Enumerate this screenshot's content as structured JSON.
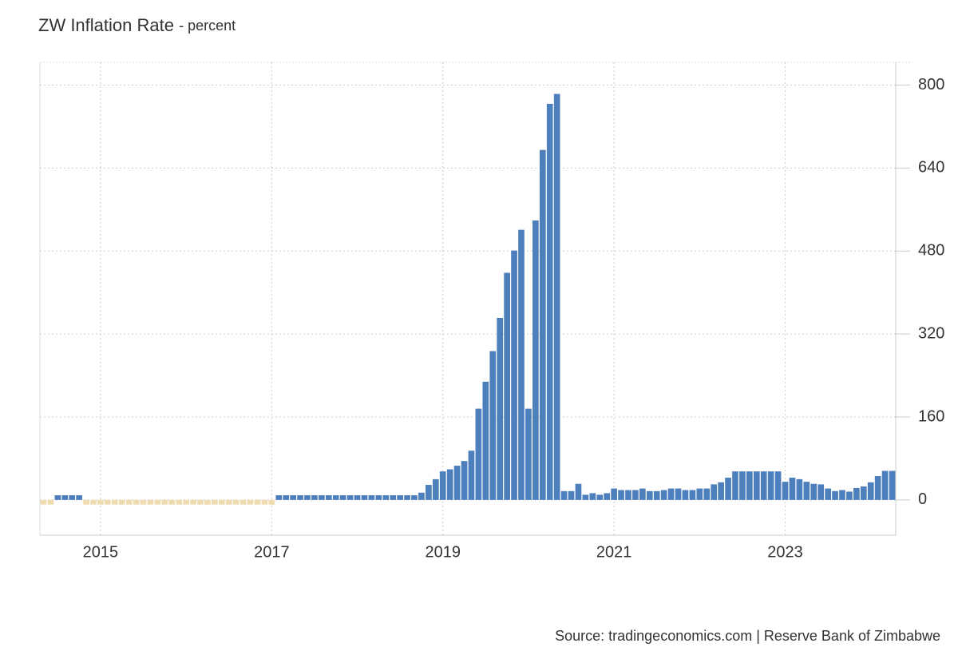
{
  "chart_data": {
    "type": "bar",
    "title": "ZW Inflation Rate",
    "subtitle": "- percent",
    "source": "Source: tradingeconomics.com | Reserve Bank of Zimbabwe",
    "categories": [
      null,
      null,
      null,
      null,
      null,
      null,
      null,
      null,
      "2015",
      null,
      null,
      null,
      null,
      null,
      null,
      null,
      null,
      null,
      null,
      null,
      null,
      null,
      null,
      null,
      null,
      null,
      null,
      null,
      null,
      null,
      null,
      null,
      "2017",
      null,
      null,
      null,
      null,
      null,
      null,
      null,
      null,
      null,
      null,
      null,
      null,
      null,
      null,
      null,
      null,
      null,
      null,
      null,
      null,
      null,
      null,
      null,
      "2019",
      null,
      null,
      null,
      null,
      null,
      null,
      null,
      null,
      null,
      null,
      null,
      null,
      null,
      null,
      null,
      null,
      null,
      null,
      null,
      null,
      null,
      null,
      null,
      "2021",
      null,
      null,
      null,
      null,
      null,
      null,
      null,
      null,
      null,
      null,
      null,
      null,
      null,
      null,
      null,
      null,
      null,
      null,
      null,
      null,
      null,
      null,
      null,
      "2023",
      null,
      null,
      null,
      null,
      null,
      null,
      null,
      null,
      null,
      null,
      null,
      null,
      null,
      null,
      null
    ],
    "values": [
      -9,
      -9,
      9,
      9,
      9,
      9,
      -9,
      -9,
      -9,
      -9,
      -9,
      -9,
      -9,
      -9,
      -9,
      -9,
      -9,
      -9,
      -9,
      -9,
      -9,
      -9,
      -9,
      -9,
      -9,
      -9,
      -9,
      -9,
      -9,
      -9,
      -9,
      -9,
      -9,
      9,
      9,
      9,
      9,
      9,
      9,
      9,
      9,
      9,
      9,
      9,
      9,
      9,
      9,
      9,
      9,
      9,
      9,
      9,
      9,
      14,
      29,
      40,
      55,
      59,
      66,
      75,
      95,
      176,
      228,
      287,
      351,
      438,
      481,
      521,
      176,
      539,
      675,
      764,
      783,
      17,
      17,
      31,
      10,
      13,
      10,
      13,
      22,
      19,
      19,
      19,
      22,
      17,
      17,
      19,
      22,
      22,
      19,
      19,
      22,
      22,
      30,
      34,
      43,
      55,
      55,
      55,
      55,
      55,
      55,
      55,
      35,
      43,
      40,
      35,
      31,
      30,
      22,
      17,
      19,
      16,
      23,
      26,
      34,
      46,
      56,
      56
    ],
    "color": "#4e7fbd",
    "negative_color": "#f0dbb0",
    "ylim": [
      -68,
      844
    ],
    "yticks": [
      0,
      160,
      320,
      480,
      640,
      800
    ],
    "grid": true
  }
}
